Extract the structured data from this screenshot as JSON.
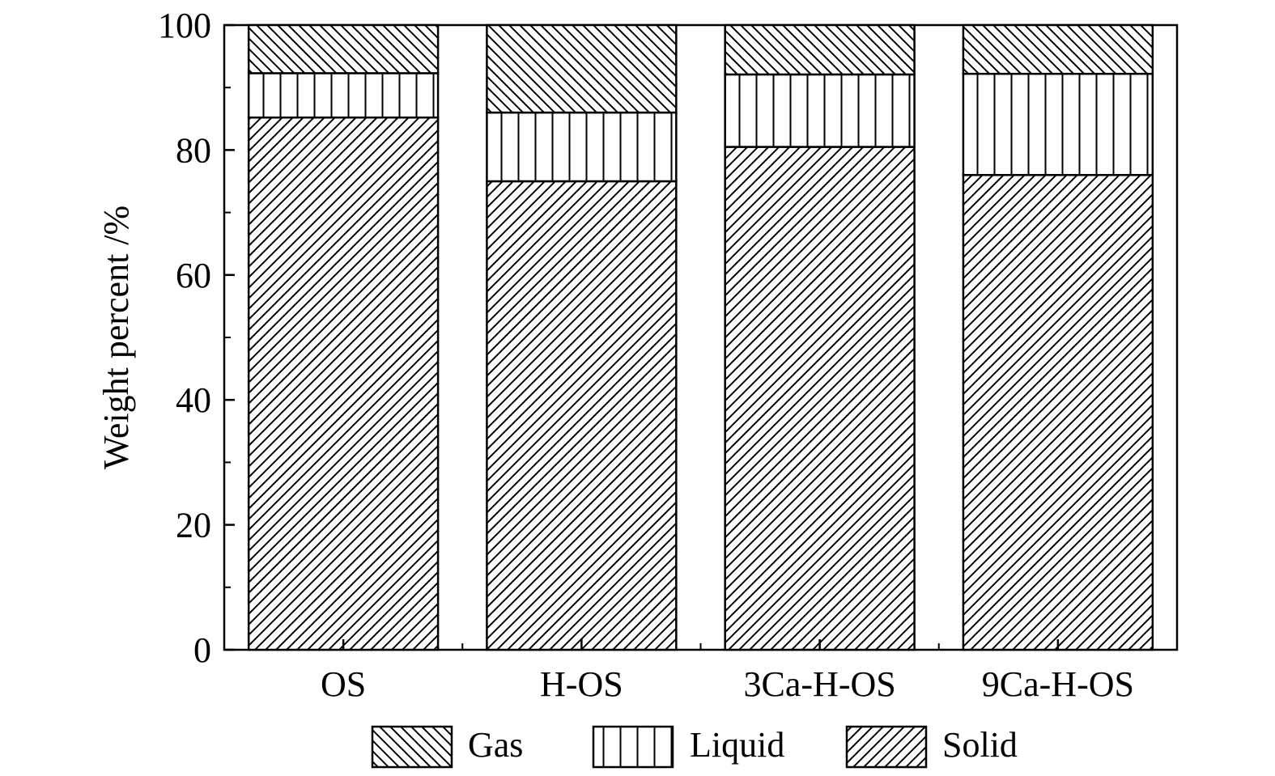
{
  "chart_data": {
    "type": "bar",
    "stacked": true,
    "title": "",
    "xlabel": "",
    "ylabel": "Weight percent /%",
    "ylim": [
      0,
      100
    ],
    "y_ticks": [
      "0",
      "20",
      "40",
      "60",
      "80",
      "100"
    ],
    "grid": false,
    "legend_position": "bottom",
    "categories": [
      "OS",
      "H-OS",
      "3Ca-H-OS",
      "9Ca-H-OS"
    ],
    "series": [
      {
        "name": "Solid",
        "values": [
          85.2,
          75.0,
          80.5,
          76.0
        ]
      },
      {
        "name": "Liquid",
        "values": [
          7.1,
          11.0,
          11.6,
          16.2
        ]
      },
      {
        "name": "Gas",
        "values": [
          7.7,
          14.0,
          7.9,
          7.8
        ]
      }
    ],
    "legend": [
      "Gas",
      "Liquid",
      "Solid"
    ],
    "colors": {
      "ink": "#000000",
      "fill": "#ffffff"
    }
  }
}
